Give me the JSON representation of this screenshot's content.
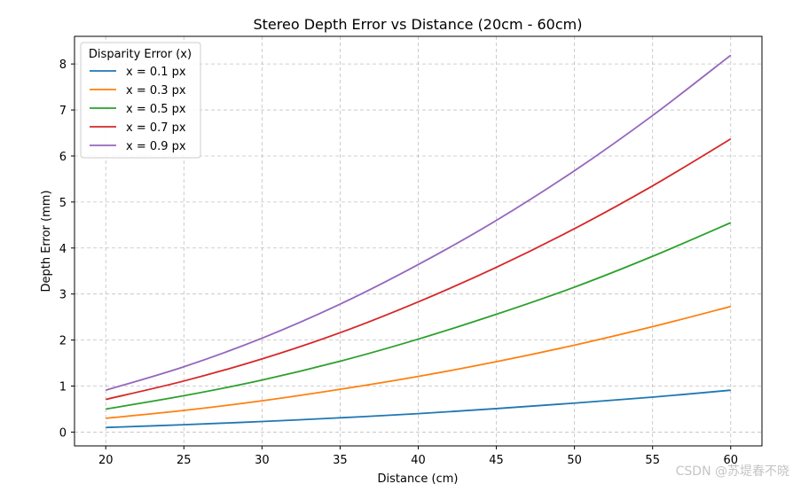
{
  "chart_data": {
    "type": "line",
    "title": "Stereo Depth Error vs Distance (20cm - 60cm)",
    "xlabel": "Distance (cm)",
    "ylabel": "Depth Error (mm)",
    "xlim": [
      18,
      62
    ],
    "ylim": [
      -0.3,
      8.6
    ],
    "xticks": [
      20,
      25,
      30,
      35,
      40,
      45,
      50,
      55,
      60
    ],
    "yticks": [
      0,
      1,
      2,
      3,
      4,
      5,
      6,
      7,
      8
    ],
    "grid": true,
    "legend": {
      "title": "Disparity Error (x)",
      "position": "top-left"
    },
    "x": [
      20,
      25,
      30,
      35,
      40,
      45,
      50,
      55,
      60
    ],
    "series": [
      {
        "name": "x = 0.1 px",
        "color": "#1f77b4",
        "values": [
          0.1,
          0.16,
          0.23,
          0.31,
          0.4,
          0.51,
          0.63,
          0.76,
          0.91
        ]
      },
      {
        "name": "x = 0.3 px",
        "color": "#ff7f0e",
        "values": [
          0.3,
          0.47,
          0.68,
          0.93,
          1.21,
          1.53,
          1.89,
          2.29,
          2.73
        ]
      },
      {
        "name": "x = 0.5 px",
        "color": "#2ca02c",
        "values": [
          0.5,
          0.79,
          1.13,
          1.54,
          2.02,
          2.56,
          3.15,
          3.82,
          4.55
        ]
      },
      {
        "name": "x = 0.7 px",
        "color": "#d62728",
        "values": [
          0.71,
          1.11,
          1.59,
          2.16,
          2.83,
          3.58,
          4.42,
          5.35,
          6.37
        ]
      },
      {
        "name": "x = 0.9 px",
        "color": "#9467bd",
        "values": [
          0.91,
          1.42,
          2.04,
          2.78,
          3.64,
          4.6,
          5.68,
          6.88,
          8.19
        ]
      }
    ]
  },
  "watermark": "CSDN @苏堤春不晓"
}
